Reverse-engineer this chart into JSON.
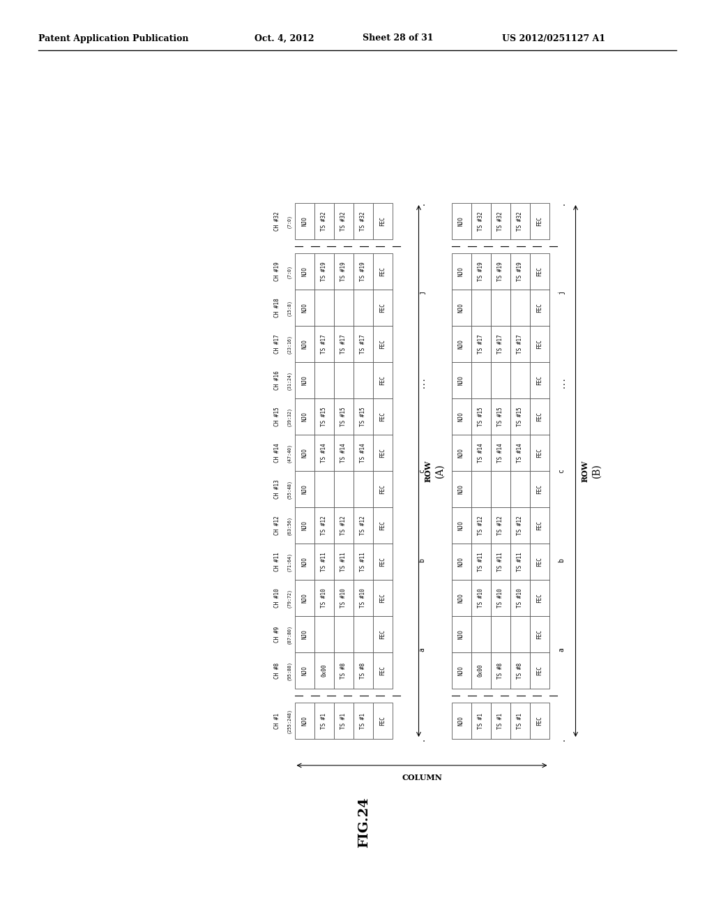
{
  "background_color": "#ffffff",
  "header_left": "Patent Application Publication",
  "header_mid1": "Oct. 4, 2012",
  "header_mid2": "Sheet 28 of 31",
  "header_right": "US 2012/0251127 A1",
  "fig_label": "FIG.24",
  "channels": [
    {
      "name": "CH #1",
      "range": "(255:248)",
      "cells_a": [
        "NJO",
        "TS #1",
        "TS #1",
        "TS #1",
        "FEC"
      ],
      "cells_b": [
        "NJO",
        "TS #1",
        "TS #1",
        "TS #1",
        "FEC"
      ],
      "bold_a": [],
      "bold_b": [],
      "gap_before": false
    },
    {
      "name": "CH #8",
      "range": "(95:88)",
      "cells_a": [
        "NJO",
        "0x00",
        "TS #8",
        "TS #8",
        "FEC"
      ],
      "cells_b": [
        "NJO",
        "0x00",
        "TS #8",
        "TS #8",
        "FEC"
      ],
      "bold_a": [
        2
      ],
      "bold_b": [],
      "gap_before": true
    },
    {
      "name": "CH #9",
      "range": "(87:80)",
      "cells_a": [
        "NJO",
        "",
        "",
        "",
        "FEC"
      ],
      "cells_b": [
        "NJO",
        "",
        "",
        "",
        "FEC"
      ],
      "bold_a": [],
      "bold_b": [],
      "gap_before": false
    },
    {
      "name": "CH #10",
      "range": "(79:72)",
      "cells_a": [
        "NJO",
        "TS #10",
        "TS #10",
        "TS #10",
        "FEC"
      ],
      "cells_b": [
        "NJO",
        "TS #10",
        "TS #10",
        "TS #10",
        "FEC"
      ],
      "bold_a": [],
      "bold_b": [],
      "gap_before": false
    },
    {
      "name": "CH #11",
      "range": "(71:64)",
      "cells_a": [
        "NJO",
        "TS #11",
        "TS #11",
        "TS #11",
        "FEC"
      ],
      "cells_b": [
        "NJO",
        "TS #11",
        "TS #11",
        "TS #11",
        "FEC"
      ],
      "bold_a": [],
      "bold_b": [],
      "gap_before": false
    },
    {
      "name": "CH #12",
      "range": "(63:56)",
      "cells_a": [
        "NJO",
        "TS #12",
        "TS #12",
        "TS #12",
        "FEC"
      ],
      "cells_b": [
        "NJO",
        "TS #12",
        "TS #12",
        "TS #12",
        "FEC"
      ],
      "bold_a": [],
      "bold_b": [],
      "gap_before": false
    },
    {
      "name": "CH #13",
      "range": "(55:48)",
      "cells_a": [
        "NJO",
        "",
        "",
        "",
        "FEC"
      ],
      "cells_b": [
        "NJO",
        "",
        "",
        "",
        "FEC"
      ],
      "bold_a": [],
      "bold_b": [],
      "gap_before": false
    },
    {
      "name": "CH #14",
      "range": "(47:40)",
      "cells_a": [
        "NJO",
        "TS #14",
        "TS #14",
        "TS #14",
        "FEC"
      ],
      "cells_b": [
        "NJO",
        "TS #14",
        "TS #14",
        "TS #14",
        "FEC"
      ],
      "bold_a": [],
      "bold_b": [],
      "gap_before": false
    },
    {
      "name": "CH #15",
      "range": "(39:32)",
      "cells_a": [
        "NJO",
        "TS #15",
        "TS #15",
        "TS #15",
        "FEC"
      ],
      "cells_b": [
        "NJO",
        "TS #15",
        "TS #15",
        "TS #15",
        "FEC"
      ],
      "bold_a": [],
      "bold_b": [],
      "gap_before": false
    },
    {
      "name": "CH #16",
      "range": "(31:24)",
      "cells_a": [
        "NJO",
        "",
        "",
        "",
        "FEC"
      ],
      "cells_b": [
        "NJO",
        "",
        "",
        "",
        "FEC"
      ],
      "bold_a": [],
      "bold_b": [],
      "gap_before": false
    },
    {
      "name": "CH #17",
      "range": "(23:16)",
      "cells_a": [
        "NJO",
        "TS #17",
        "TS #17",
        "TS #17",
        "FEC"
      ],
      "cells_b": [
        "NJO",
        "TS #17",
        "TS #17",
        "TS #17",
        "FEC"
      ],
      "bold_a": [],
      "bold_b": [],
      "gap_before": false
    },
    {
      "name": "CH #18",
      "range": "(15:8)",
      "cells_a": [
        "NJO",
        "",
        "",
        "",
        "FEC"
      ],
      "cells_b": [
        "NJO",
        "",
        "",
        "",
        "FEC"
      ],
      "bold_a": [],
      "bold_b": [],
      "gap_before": false
    },
    {
      "name": "CH #19",
      "range": "(7:0)",
      "cells_a": [
        "NJO",
        "TS #19",
        "TS #19",
        "TS #19",
        "FEC"
      ],
      "cells_b": [
        "NJO",
        "TS #19",
        "TS #19",
        "TS #19",
        "FEC"
      ],
      "bold_a": [],
      "bold_b": [],
      "gap_before": false
    },
    {
      "name": "CH #32",
      "range": "(7:0)",
      "cells_a": [
        "NJO",
        "TS #32",
        "TS #32",
        "TS #32",
        "FEC"
      ],
      "cells_b": [
        "NJO",
        "TS #32",
        "TS #32",
        "TS #32",
        "FEC"
      ],
      "bold_a": [],
      "bold_b": [],
      "gap_before": true
    }
  ],
  "row_labels": [
    ".",
    "a",
    "b",
    "c",
    "...",
    "j",
    "."
  ],
  "col_label": "COLUMN",
  "row_label": "ROW",
  "label_a": "(A)",
  "label_b": "(B)"
}
